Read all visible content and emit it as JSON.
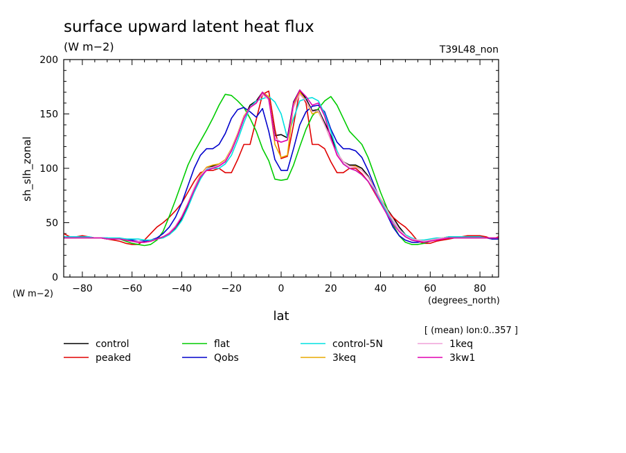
{
  "chart_data": {
    "type": "line",
    "title": "surface upward latent heat flux",
    "units": "(W m−2)",
    "run_label": "T39L48_non",
    "ylabel": "sh_slh_zonal",
    "y_units": "(W m−2)",
    "xlabel": "lat",
    "x_units": "(degrees_north)",
    "subset_note": "[ (mean) lon:0..357 ]",
    "xlim": [
      -87.5,
      87.5
    ],
    "ylim": [
      0,
      200
    ],
    "x_ticks": [
      -80,
      -60,
      -40,
      -20,
      0,
      20,
      40,
      60,
      80
    ],
    "x_tick_labels": [
      "−80",
      "−60",
      "−40",
      "−20",
      "0",
      "20",
      "40",
      "60",
      "80"
    ],
    "y_ticks": [
      0,
      50,
      100,
      150,
      200
    ],
    "y_tick_labels": [
      "0",
      "50",
      "100",
      "150",
      "200"
    ],
    "grid": false,
    "legend_position": "bottom",
    "x": [
      -87.5,
      -85,
      -82.5,
      -80,
      -77.5,
      -75,
      -72.5,
      -70,
      -67.5,
      -65,
      -62.5,
      -60,
      -57.5,
      -55,
      -52.5,
      -50,
      -47.5,
      -45,
      -42.5,
      -40,
      -37.5,
      -35,
      -32.5,
      -30,
      -27.5,
      -25,
      -22.5,
      -20,
      -17.5,
      -15,
      -12.5,
      -10,
      -7.5,
      -5,
      -2.5,
      0,
      2.5,
      5,
      7.5,
      10,
      12.5,
      15,
      17.5,
      20,
      22.5,
      25,
      27.5,
      30,
      32.5,
      35,
      37.5,
      40,
      42.5,
      45,
      47.5,
      50,
      52.5,
      55,
      57.5,
      60,
      62.5,
      65,
      67.5,
      70,
      72.5,
      75,
      77.5,
      80,
      82.5,
      85,
      87.5
    ],
    "series": [
      {
        "name": "control",
        "color": "#000000",
        "values": [
          36,
          36,
          36,
          37,
          36,
          36,
          36,
          35,
          35,
          35,
          34,
          33,
          32,
          32,
          33,
          35,
          37,
          40,
          45,
          54,
          66,
          80,
          92,
          100,
          102,
          104,
          106,
          116,
          130,
          146,
          158,
          162,
          170,
          163,
          130,
          131,
          128,
          161,
          172,
          164,
          153,
          154,
          142,
          130,
          114,
          106,
          103,
          103,
          100,
          93,
          82,
          72,
          63,
          55,
          46,
          39,
          34,
          33,
          32,
          33,
          35,
          36,
          37,
          37,
          37,
          37,
          37,
          37,
          36,
          36,
          36
        ]
      },
      {
        "name": "peaked",
        "color": "#e00000",
        "values": [
          40,
          37,
          37,
          38,
          37,
          36,
          36,
          35,
          34,
          33,
          31,
          30,
          30,
          34,
          40,
          46,
          50,
          55,
          61,
          68,
          78,
          88,
          96,
          98,
          98,
          100,
          96,
          96,
          108,
          122,
          122,
          145,
          168,
          171,
          136,
          109,
          111,
          140,
          171,
          160,
          122,
          122,
          118,
          106,
          96,
          96,
          100,
          100,
          95,
          88,
          78,
          68,
          62,
          55,
          50,
          46,
          40,
          33,
          31,
          31,
          33,
          34,
          35,
          36,
          37,
          38,
          38,
          38,
          37,
          35,
          37
        ]
      },
      {
        "name": "flat",
        "color": "#00cc00",
        "values": [
          36,
          36,
          36,
          36,
          36,
          36,
          36,
          35,
          35,
          35,
          33,
          31,
          30,
          29,
          30,
          34,
          42,
          56,
          71,
          87,
          103,
          115,
          125,
          135,
          146,
          158,
          168,
          167,
          162,
          156,
          146,
          134,
          118,
          107,
          90,
          89,
          90,
          103,
          120,
          136,
          148,
          155,
          162,
          166,
          158,
          146,
          134,
          128,
          122,
          110,
          94,
          78,
          64,
          48,
          38,
          32,
          30,
          30,
          31,
          33,
          35,
          36,
          36,
          36,
          36,
          36,
          36,
          36,
          36,
          35,
          35
        ]
      },
      {
        "name": "Qobs",
        "color": "#0000cc",
        "values": [
          37,
          37,
          37,
          37,
          37,
          36,
          36,
          36,
          35,
          35,
          35,
          34,
          33,
          33,
          34,
          36,
          40,
          46,
          55,
          68,
          84,
          100,
          112,
          118,
          118,
          122,
          132,
          146,
          154,
          156,
          152,
          147,
          155,
          134,
          108,
          98,
          98,
          118,
          140,
          152,
          157,
          158,
          152,
          136,
          124,
          118,
          118,
          116,
          110,
          98,
          84,
          70,
          58,
          46,
          38,
          34,
          32,
          32,
          33,
          34,
          35,
          36,
          36,
          36,
          36,
          36,
          36,
          36,
          36,
          35,
          35
        ]
      },
      {
        "name": "control-5N",
        "color": "#00e0e0",
        "values": [
          37,
          37,
          37,
          37,
          37,
          36,
          36,
          36,
          36,
          36,
          35,
          35,
          35,
          34,
          34,
          35,
          36,
          39,
          44,
          52,
          64,
          78,
          90,
          99,
          100,
          100,
          104,
          112,
          126,
          142,
          156,
          162,
          164,
          166,
          161,
          150,
          128,
          146,
          162,
          164,
          165,
          162,
          150,
          134,
          116,
          104,
          100,
          98,
          94,
          88,
          80,
          70,
          60,
          51,
          44,
          39,
          36,
          34,
          34,
          35,
          36,
          36,
          37,
          37,
          37,
          37,
          37,
          37,
          36,
          36,
          36
        ]
      },
      {
        "name": "3keq",
        "color": "#e8a800",
        "values": [
          36,
          36,
          36,
          36,
          36,
          36,
          36,
          35,
          35,
          35,
          34,
          33,
          32,
          32,
          33,
          35,
          37,
          40,
          46,
          56,
          68,
          82,
          94,
          101,
          103,
          104,
          108,
          118,
          132,
          148,
          156,
          160,
          170,
          166,
          122,
          110,
          112,
          158,
          170,
          162,
          150,
          152,
          140,
          126,
          114,
          106,
          102,
          102,
          98,
          92,
          82,
          72,
          62,
          52,
          44,
          38,
          35,
          34,
          33,
          34,
          35,
          36,
          36,
          36,
          36,
          36,
          36,
          36,
          36,
          36,
          36
        ]
      },
      {
        "name": "1keq",
        "color": "#f0a0d8",
        "values": [
          36,
          36,
          36,
          36,
          36,
          36,
          36,
          35,
          35,
          35,
          34,
          33,
          33,
          32,
          33,
          35,
          37,
          41,
          47,
          56,
          68,
          82,
          93,
          100,
          101,
          103,
          107,
          117,
          131,
          147,
          156,
          160,
          168,
          163,
          128,
          124,
          126,
          156,
          168,
          162,
          152,
          153,
          140,
          126,
          114,
          106,
          102,
          101,
          98,
          92,
          82,
          72,
          62,
          52,
          44,
          38,
          35,
          34,
          33,
          34,
          35,
          36,
          36,
          36,
          36,
          36,
          36,
          36,
          36,
          36,
          36
        ]
      },
      {
        "name": "3kw1",
        "color": "#e000b0",
        "values": [
          36,
          36,
          36,
          36,
          36,
          36,
          36,
          35,
          35,
          35,
          34,
          33,
          32,
          32,
          33,
          35,
          37,
          40,
          46,
          55,
          67,
          80,
          92,
          98,
          100,
          102,
          106,
          116,
          130,
          146,
          156,
          160,
          170,
          164,
          126,
          124,
          126,
          160,
          172,
          166,
          158,
          160,
          148,
          128,
          112,
          104,
          100,
          98,
          94,
          88,
          79,
          68,
          58,
          49,
          42,
          37,
          34,
          33,
          32,
          33,
          34,
          35,
          36,
          36,
          36,
          36,
          36,
          36,
          36,
          36,
          36
        ]
      }
    ]
  }
}
